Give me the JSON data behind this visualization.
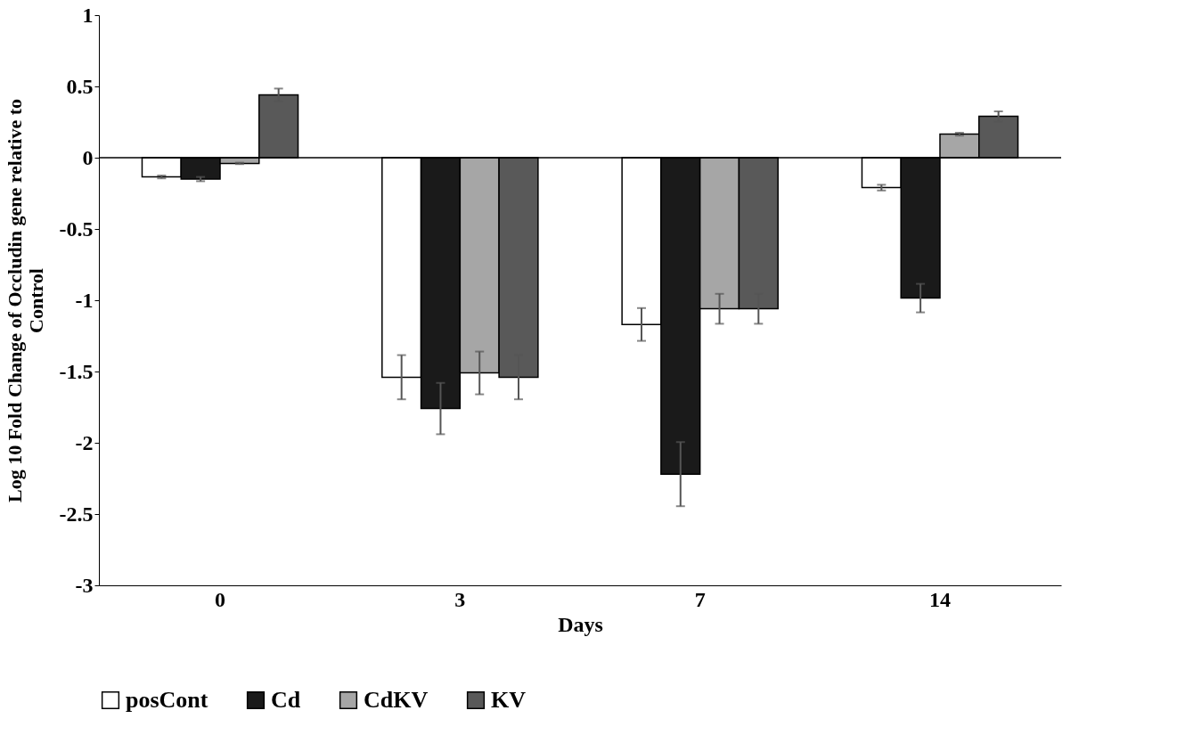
{
  "chart_data": {
    "type": "bar",
    "xlabel": "Days",
    "ylabel": "Log 10 Fold Change of Occludin gene relative to Control",
    "categories": [
      "0",
      "3",
      "7",
      "14"
    ],
    "series": [
      {
        "name": "posCont",
        "color": "#ffffff",
        "values": [
          -0.135,
          -1.54,
          -1.17,
          -0.21
        ],
        "errors": [
          0.01,
          0.155,
          0.115,
          0.02
        ]
      },
      {
        "name": "Cd",
        "color": "#1a1a1a",
        "values": [
          -0.15,
          -1.76,
          -2.22,
          -0.985
        ],
        "errors": [
          0.015,
          0.18,
          0.225,
          0.1
        ]
      },
      {
        "name": "CdKV",
        "color": "#a6a6a6",
        "values": [
          -0.04,
          -1.51,
          -1.06,
          0.165
        ],
        "errors": [
          0.005,
          0.15,
          0.105,
          0.01
        ]
      },
      {
        "name": "KV",
        "color": "#595959",
        "values": [
          0.44,
          -1.54,
          -1.06,
          0.29
        ],
        "errors": [
          0.045,
          0.155,
          0.105,
          0.035
        ]
      }
    ],
    "ylim": [
      -3,
      1
    ],
    "yticks": [
      -3,
      -2.5,
      -2,
      -1.5,
      -1,
      -0.5,
      0,
      0.5,
      1
    ],
    "ref_lines": [
      {
        "axis": "y",
        "value": 0,
        "color": "#000000"
      }
    ],
    "grid": false,
    "legend": "bottom"
  }
}
